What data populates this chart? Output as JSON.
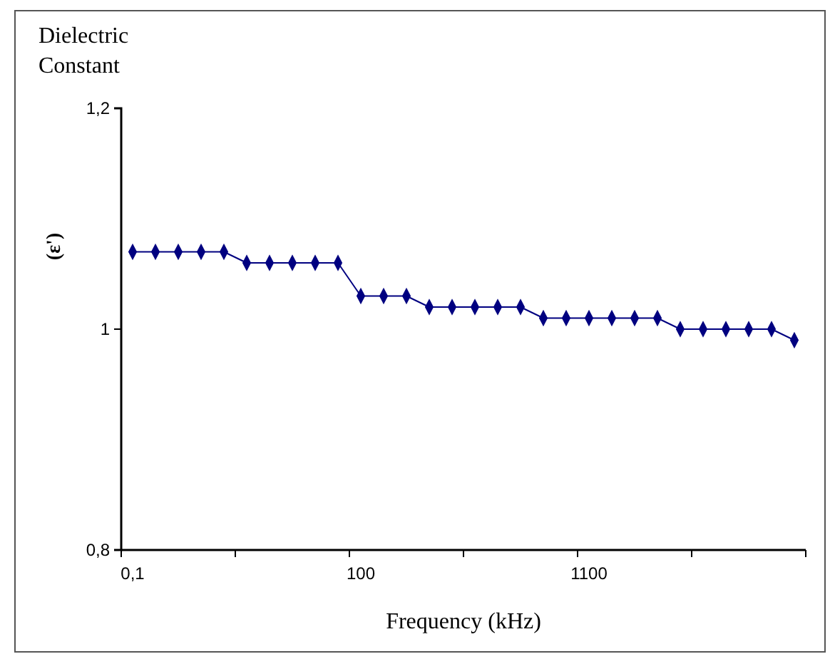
{
  "chart_data": {
    "type": "line",
    "ylabel": "Dielectric Constant",
    "xlabel": "Frequency (kHz)",
    "annotations": [
      "(ε')"
    ],
    "categories": [
      "0,1",
      null,
      null,
      null,
      null,
      null,
      null,
      null,
      null,
      null,
      "100",
      null,
      null,
      null,
      null,
      null,
      null,
      null,
      null,
      null,
      "1100",
      null,
      null,
      null,
      null,
      null,
      null,
      null,
      null,
      null
    ],
    "series": [
      {
        "color": "#000080",
        "values": [
          1.07,
          1.07,
          1.07,
          1.07,
          1.07,
          1.06,
          1.06,
          1.06,
          1.06,
          1.06,
          1.03,
          1.03,
          1.03,
          1.02,
          1.02,
          1.02,
          1.02,
          1.02,
          1.01,
          1.01,
          1.01,
          1.01,
          1.01,
          1.01,
          1.0,
          1.0,
          1.0,
          1.0,
          1.0,
          0.99
        ]
      }
    ],
    "ylim": [
      0.8,
      1.2
    ],
    "yticks": [
      {
        "value": 0.8,
        "label": "0,8"
      },
      1,
      {
        "value": 1.2,
        "label": "1,2"
      }
    ],
    "marker": "diamond",
    "line_style": "solid",
    "grid": false
  }
}
